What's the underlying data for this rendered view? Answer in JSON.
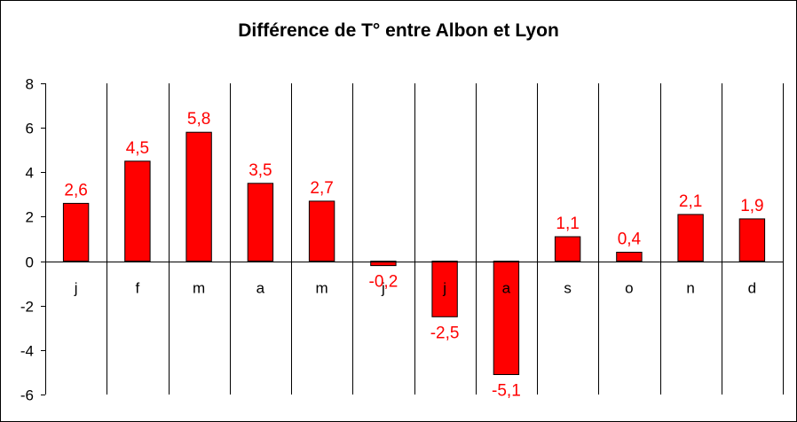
{
  "chart_data": {
    "type": "bar",
    "title": "Différence de T° entre Albon et Lyon",
    "xlabel": "",
    "ylabel": "",
    "categories": [
      "j",
      "f",
      "m",
      "a",
      "m",
      "j",
      "j",
      "a",
      "s",
      "o",
      "n",
      "d"
    ],
    "values": [
      2.6,
      4.5,
      5.8,
      3.5,
      2.7,
      -0.2,
      -2.5,
      -5.1,
      1.1,
      0.4,
      2.1,
      1.9
    ],
    "data_labels": [
      "2,6",
      "4,5",
      "5,8",
      "3,5",
      "2,7",
      "-0,2",
      "-2,5",
      "-5,1",
      "1,1",
      "0,4",
      "2,1",
      "1,9"
    ],
    "ylim": [
      -6,
      8
    ],
    "yticks": [
      8,
      6,
      4,
      2,
      0,
      -2,
      -4,
      -6
    ],
    "vertical_gridlines": true,
    "legend": "none",
    "colors": {
      "bar": "#ff0000",
      "bar_stroke": "#000000",
      "data_label": "#ff0000",
      "axis": "#000000",
      "text": "#000000"
    }
  }
}
